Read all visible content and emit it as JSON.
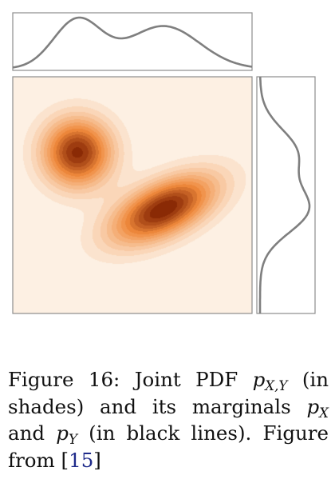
{
  "figure": {
    "colors": {
      "heat_low": "#fdf0e3",
      "heat_mid": "#f08a3c",
      "heat_high": "#8a2a05",
      "marginal_line": "#7f7f7f",
      "frame": "#8c8c8c"
    },
    "components": [
      {
        "mx": 0.27,
        "my": 0.32,
        "sx": 0.1,
        "sy": 0.1,
        "rho": 0.0,
        "w": 1.0
      },
      {
        "mx": 0.63,
        "my": 0.56,
        "sx": 0.15,
        "sy": 0.1,
        "rho": -0.55,
        "w": 1.05
      }
    ]
  },
  "caption": {
    "label": "Figure 16:",
    "text_1": "Joint PDF",
    "sym_joint": "p",
    "sub_joint": "X,Y",
    "text_2": "(in shades) and its marginals",
    "sym_x": "p",
    "sub_x": "X",
    "text_3": "and",
    "sym_y": "p",
    "sub_y": "Y",
    "text_4": "(in black lines).",
    "text_5": "Figure from [",
    "citation": "15",
    "text_6": "]"
  }
}
